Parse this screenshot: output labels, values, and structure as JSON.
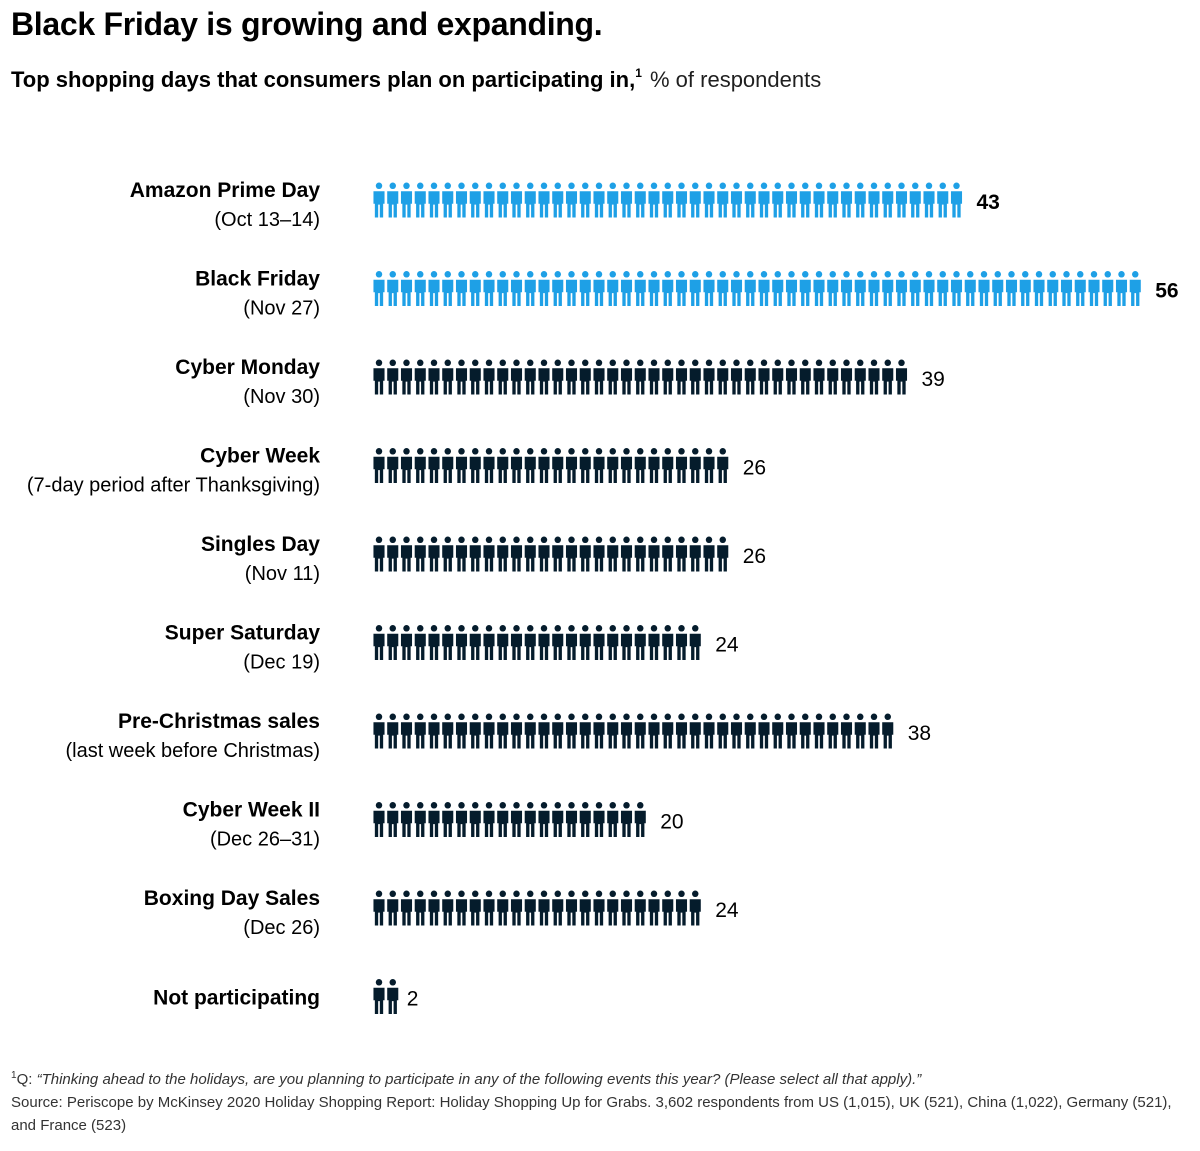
{
  "title": "Black Friday is growing and expanding.",
  "subtitle": {
    "main": "Top shopping days that consumers plan on participating in,",
    "marker": "1",
    "unit": "% of respondents"
  },
  "colors": {
    "highlight": "#1ea0e6",
    "default": "#051c2c",
    "text": "#000000"
  },
  "icon": "person-icon",
  "chart_data": {
    "type": "pictogram-bar",
    "title": "Top shopping days that consumers plan on participating in",
    "unit": "% of respondents",
    "icon_count_rule": "one icon per percentage point",
    "categories": [
      {
        "name": "Amazon Prime Day",
        "detail": "(Oct  13–14)",
        "value": 43,
        "highlight": true
      },
      {
        "name": "Black Friday",
        "detail": "(Nov 27)",
        "value": 56,
        "highlight": true
      },
      {
        "name": "Cyber Monday",
        "detail": "(Nov 30)",
        "value": 39,
        "highlight": false
      },
      {
        "name": "Cyber Week",
        "detail": "(7-day period after Thanksgiving)",
        "value": 26,
        "highlight": false
      },
      {
        "name": "Singles Day",
        "detail": "(Nov 11)",
        "value": 26,
        "highlight": false
      },
      {
        "name": "Super Saturday",
        "detail": "(Dec 19)",
        "value": 24,
        "highlight": false
      },
      {
        "name": "Pre-Christmas sales",
        "detail": "(last week before Christmas)",
        "value": 38,
        "highlight": false
      },
      {
        "name": "Cyber Week II",
        "detail": "(Dec 26–31)",
        "value": 20,
        "highlight": false
      },
      {
        "name": "Boxing Day Sales",
        "detail": "(Dec 26)",
        "value": 24,
        "highlight": false
      },
      {
        "name": "Not participating",
        "detail": "",
        "value": 2,
        "highlight": false
      }
    ]
  },
  "footnotes": {
    "marker": "1",
    "q_prefix": "Q: ",
    "question": "“Thinking ahead to the holidays, are you planning to participate in any of the following events this year? (Please select all that apply).”",
    "source": "Source: Periscope by McKinsey 2020 Holiday Shopping Report: Holiday Shopping Up for Grabs. 3,602 respondents from US (1,015), UK (521), China (1,022), Germany (521), and France (523)"
  }
}
